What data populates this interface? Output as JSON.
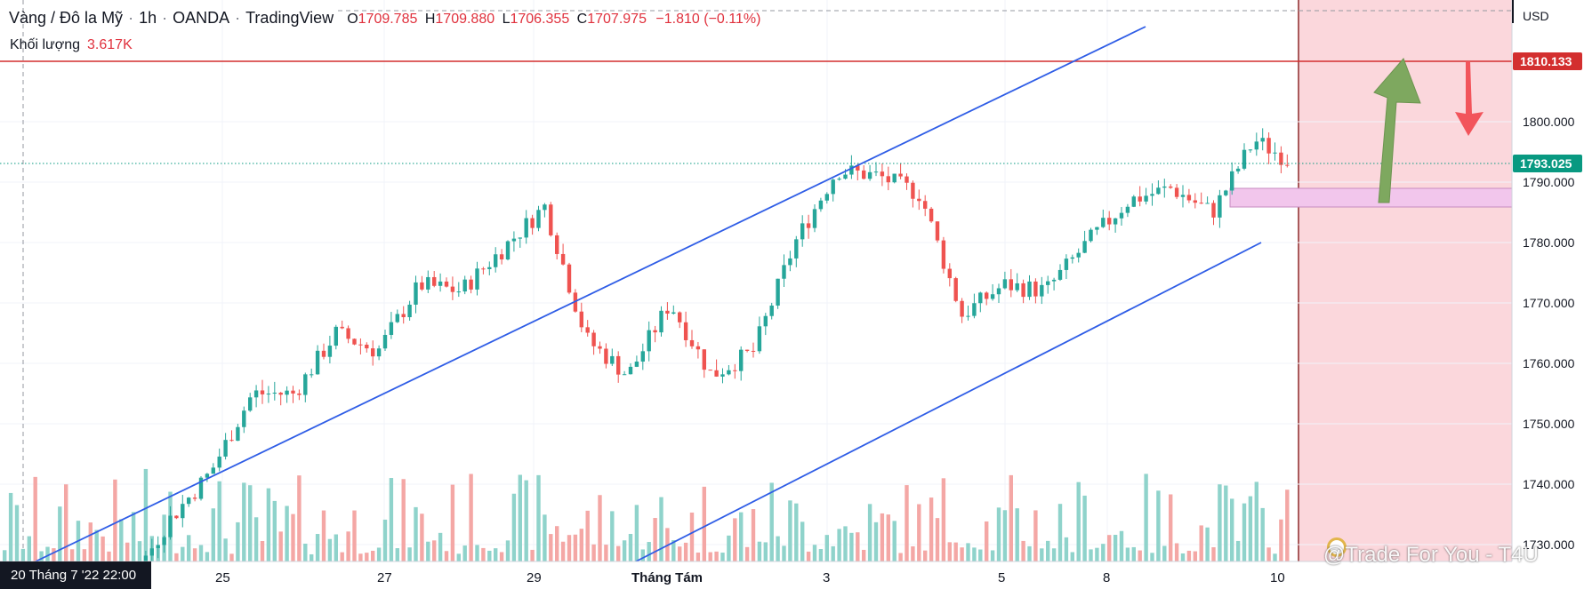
{
  "legend": {
    "symbol": "Vàng / Đô la Mỹ",
    "interval": "1h",
    "exchange": "OANDA",
    "source": "TradingView",
    "o_label": "O",
    "o_value": "1709.785",
    "h_label": "H",
    "h_value": "1709.880",
    "l_label": "L",
    "l_value": "1706.355",
    "c_label": "C",
    "c_value": "1707.975",
    "change": "−1.810 (−0.11%)"
  },
  "volume_legend": {
    "label": "Khối lượng",
    "value": "3.617K"
  },
  "price_axis": {
    "currency": "USD",
    "resistance_label": "1810.133",
    "last_price_label": "1793.025",
    "ticks": [
      "1800.000",
      "1790.000",
      "1780.000",
      "1770.000",
      "1760.000",
      "1750.000",
      "1740.000",
      "1730.000"
    ]
  },
  "time_axis": {
    "crosshair_label": "20 Tháng 7 '22   22:00",
    "ticks": [
      "25",
      "27",
      "29",
      "Tháng Tám",
      "3",
      "5",
      "8",
      "10"
    ]
  },
  "watermark": "@Trade For You - T4U",
  "colors": {
    "up": "#26a69a",
    "down": "#ef5350",
    "vol_up": "#8fd3cb",
    "vol_down": "#f4a7a5",
    "channel": "#2f5de6",
    "resistance": "#d32f2f",
    "last_price": "#089981",
    "future_zone": "#fbd7dc",
    "support_zone": "#f2c6ec",
    "arrow_up": "#7ea85f",
    "arrow_down": "#f2545b"
  },
  "chart_data": {
    "type": "candlestick",
    "symbol": "XAUUSD",
    "interval": "1h",
    "y_axis": "price (USD)",
    "ylim": [
      1729,
      1817
    ],
    "x_range": [
      "2022-07-20",
      "2022-08-11"
    ],
    "grid": true,
    "channel_lines": [
      {
        "name": "upper channel",
        "points": [
          [
            "2022-07-20",
            1716
          ],
          [
            "2022-08-09",
            1806
          ]
        ]
      },
      {
        "name": "lower channel",
        "points": [
          [
            "2022-07-28",
            1729
          ],
          [
            "2022-08-10",
            1780
          ]
        ]
      }
    ],
    "horizontal_lines": [
      {
        "name": "resistance",
        "value": 1810.133
      }
    ],
    "last_price": 1793.025,
    "support_zone": [
      1786,
      1789
    ],
    "projections": [
      {
        "direction": "up",
        "from": 1786,
        "to": 1810
      },
      {
        "direction": "down",
        "from": 1810,
        "to": 1798
      }
    ],
    "price_path_anchors": [
      [
        "2022-07-21",
        1722
      ],
      [
        "2022-07-22",
        1726
      ],
      [
        "2022-07-25",
        1724
      ],
      [
        "2022-07-26",
        1723
      ],
      [
        "2022-07-27",
        1734
      ],
      [
        "2022-07-28",
        1742
      ],
      [
        "2022-07-28",
        1755
      ],
      [
        "2022-07-29",
        1755
      ],
      [
        "2022-07-29",
        1765
      ],
      [
        "2022-08-01",
        1762
      ],
      [
        "2022-08-01",
        1773
      ],
      [
        "2022-08-02",
        1772
      ],
      [
        "2022-08-02",
        1779
      ],
      [
        "2022-08-02",
        1786
      ],
      [
        "2022-08-03",
        1764
      ],
      [
        "2022-08-03",
        1758
      ],
      [
        "2022-08-03",
        1770
      ],
      [
        "2022-08-04",
        1758
      ],
      [
        "2022-08-04",
        1762
      ],
      [
        "2022-08-05",
        1780
      ],
      [
        "2022-08-05",
        1792
      ],
      [
        "2022-08-05",
        1791
      ],
      [
        "2022-08-05",
        1788
      ],
      [
        "2022-08-08",
        1768
      ],
      [
        "2022-08-08",
        1773
      ],
      [
        "2022-08-08",
        1772
      ],
      [
        "2022-08-08",
        1780
      ],
      [
        "2022-08-09",
        1787
      ],
      [
        "2022-08-09",
        1789
      ],
      [
        "2022-08-09",
        1785
      ],
      [
        "2022-08-10",
        1797
      ],
      [
        "2022-08-10",
        1793
      ]
    ]
  }
}
